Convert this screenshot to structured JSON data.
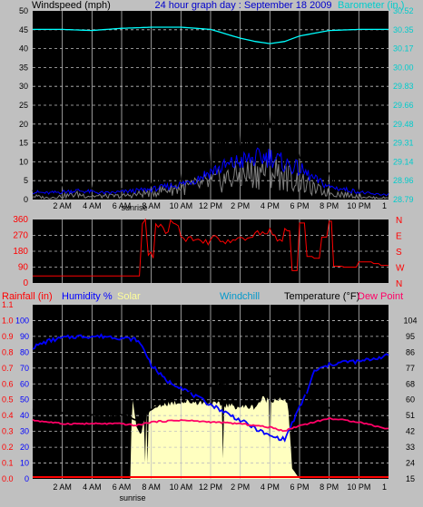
{
  "header": {
    "left_title": "Windspeed (mph)",
    "center_title": "24 hour graph day : September 18 2009",
    "right_title": "Barometer (in.)"
  },
  "mid": {
    "directions": [
      "N",
      "W",
      "S",
      "E",
      "N"
    ]
  },
  "bottom_header": {
    "rainfall": "Rainfall (in)",
    "humidity": "Humidity %",
    "solar": "Solar",
    "windchill": "Windchill",
    "temperature": "Temperature (°F)",
    "dewpoint": "Dew Point"
  },
  "sunrise_label": "sunrise",
  "colors": {
    "background": "#c0c0c0",
    "plot_bg": "#000000",
    "grid": "#c0c0c0",
    "wind": "#000000",
    "gust": "#808080",
    "avg_wind": "#0000ff",
    "barometer": "#00ffff",
    "direction": "#ff0000",
    "humidity": "#0000ff",
    "temperature": "#000000",
    "dew_point": "#ff0066",
    "solar": "#ffffc0",
    "rain": "#ff0000",
    "windchill": "#0099cc"
  },
  "chart_data": [
    {
      "type": "line",
      "title": "24 hour graph day : September 18 2009",
      "x_ticks": [
        "2 AM",
        "4 AM",
        "6 AM",
        "8 AM",
        "10 AM",
        "12 PM",
        "2 PM",
        "4 PM",
        "6 PM",
        "8 PM",
        "10 PM",
        "1"
      ],
      "x_range_hours": [
        0,
        24
      ],
      "ylabel": "Windspeed (mph)",
      "y_ticks": [
        0,
        5,
        10,
        15,
        20,
        25,
        30,
        35,
        40,
        45,
        50
      ],
      "y2label": "Barometer (in.)",
      "y2_ticks": [
        "28.79",
        "28.96",
        "29.14",
        "29.31",
        "29.48",
        "29.66",
        "29.83",
        "30.00",
        "30.17",
        "30.35",
        "30.52"
      ],
      "y2_range": [
        28.79,
        30.52
      ],
      "grid": true,
      "series": [
        {
          "x": [
            0,
            1,
            2,
            3,
            4,
            5,
            6,
            7,
            8,
            9,
            10,
            11,
            12,
            13,
            14,
            15,
            16,
            17,
            18,
            19,
            20,
            21,
            22,
            23,
            24
          ],
          "values": [
            3,
            2.5,
            3,
            3.5,
            3,
            2.5,
            3,
            3.5,
            4,
            5,
            6,
            8,
            11,
            13,
            15,
            16,
            17,
            14,
            12,
            8,
            5,
            4,
            3,
            2,
            2
          ]
        },
        {
          "x": [
            0,
            1,
            2,
            3,
            4,
            5,
            6,
            7,
            8,
            9,
            10,
            11,
            12,
            13,
            14,
            15,
            16,
            17,
            18,
            19,
            20,
            21,
            22,
            23,
            24
          ],
          "values": [
            1,
            0.5,
            1,
            1.5,
            1,
            1,
            1,
            1.5,
            2,
            3,
            3.5,
            4,
            5,
            6,
            7,
            8,
            9,
            7,
            5,
            3,
            2,
            1.5,
            1,
            0.5,
            0.5
          ]
        },
        {
          "name": "Barometer",
          "x": [
            0,
            2,
            4,
            6,
            8,
            10,
            12,
            13,
            14,
            15,
            16,
            17,
            18,
            20,
            22,
            24
          ],
          "values": [
            30.35,
            30.35,
            30.34,
            30.36,
            30.37,
            30.37,
            30.35,
            30.31,
            30.27,
            30.24,
            30.22,
            30.24,
            30.29,
            30.34,
            30.35,
            30.35
          ]
        }
      ]
    },
    {
      "type": "line",
      "x_ticks": [
        "2 AM",
        "4 AM",
        "6 AM",
        "8 AM",
        "10 AM",
        "12 PM",
        "2 PM",
        "4 PM",
        "6 PM",
        "8 PM",
        "10 PM",
        "1"
      ],
      "y_ticks": [
        0,
        90,
        180,
        270,
        360
      ],
      "y2_ticks": [
        "N",
        "W",
        "S",
        "E",
        "N"
      ],
      "ylim": [
        0,
        360
      ],
      "series": [
        {
          "x": [
            0,
            2,
            4,
            6,
            7,
            7.4,
            7.8,
            8.3,
            8.8,
            9.3,
            10,
            11,
            12,
            13,
            14,
            15,
            16,
            16.5,
            17,
            17.5,
            18,
            18.5,
            19,
            19.5,
            20,
            20.3,
            21,
            22,
            23,
            23.5,
            24
          ],
          "values": [
            40,
            40,
            40,
            40,
            40,
            350,
            160,
            330,
            300,
            340,
            250,
            230,
            250,
            240,
            260,
            280,
            290,
            230,
            300,
            70,
            340,
            150,
            140,
            260,
            350,
            95,
            90,
            120,
            110,
            100,
            100
          ]
        }
      ]
    },
    {
      "type": "line",
      "ylabel": "Temperature (°F)",
      "y2_ticks": [
        "15",
        "24",
        "33",
        "42",
        "51",
        "60",
        "68",
        "77",
        "86",
        "95",
        "104"
      ],
      "y2_range": [
        15,
        104
      ],
      "humidity_ticks": [
        0,
        10,
        20,
        30,
        40,
        50,
        60,
        70,
        80,
        90,
        100
      ],
      "rain_ticks": [
        "0.0",
        "0.1",
        "0.2",
        "0.3",
        "0.4",
        "0.5",
        "0.6",
        "0.7",
        "0.8",
        "0.9",
        "1.0",
        "1.1"
      ],
      "x_ticks": [
        "2 AM",
        "4 AM",
        "6 AM",
        "8 AM",
        "10 AM",
        "12 PM",
        "2 PM",
        "4 PM",
        "6 PM",
        "8 PM",
        "10 PM",
        "1"
      ],
      "grid": true,
      "series": [
        {
          "name": "Humidity %",
          "x": [
            0,
            1,
            2,
            3,
            4,
            5,
            6,
            7,
            7.5,
            8,
            9,
            10,
            11,
            12,
            13,
            14,
            15,
            16,
            17,
            17.5,
            18,
            18.5,
            19,
            20,
            21,
            22,
            23,
            24
          ],
          "values": [
            83,
            87,
            89,
            90,
            90,
            90,
            89,
            88,
            82,
            72,
            62,
            58,
            52,
            47,
            42,
            37,
            32,
            27,
            25,
            35,
            45,
            55,
            68,
            72,
            74,
            74,
            76,
            78
          ]
        },
        {
          "name": "Temperature (°F)",
          "x": [
            0,
            1,
            2,
            3,
            4,
            5,
            6,
            7,
            8,
            9,
            10,
            11,
            12,
            13,
            14,
            15,
            16,
            17,
            18,
            19,
            20,
            21,
            22,
            23,
            24
          ],
          "values": [
            54,
            52,
            52,
            51,
            51,
            51,
            51,
            48,
            54,
            59,
            62,
            65,
            67,
            69,
            70,
            72,
            73,
            72,
            66,
            58,
            55,
            54,
            53,
            52,
            48
          ]
        },
        {
          "name": "Dew Point",
          "x": [
            0,
            2,
            4,
            6,
            7,
            8,
            10,
            12,
            14,
            16,
            17,
            18,
            19,
            20,
            22,
            24
          ],
          "values": [
            48,
            46,
            46,
            46,
            45,
            47,
            48,
            47,
            46,
            44,
            42,
            45,
            47,
            49,
            47,
            43
          ]
        },
        {
          "name": "Solar",
          "x": [
            0,
            6.6,
            6.7,
            7,
            7.3,
            7.6,
            8,
            9,
            10,
            11,
            12,
            13,
            14,
            15,
            15.5,
            16,
            16.5,
            17,
            17.2,
            17.5,
            18,
            24
          ],
          "values": [
            0,
            0,
            480,
            300,
            250,
            380,
            420,
            450,
            460,
            460,
            450,
            440,
            430,
            430,
            480,
            470,
            480,
            460,
            470,
            60,
            0,
            0
          ]
        },
        {
          "name": "Rainfall (in)",
          "x": [
            0,
            24
          ],
          "values": [
            0,
            0
          ]
        }
      ]
    }
  ]
}
